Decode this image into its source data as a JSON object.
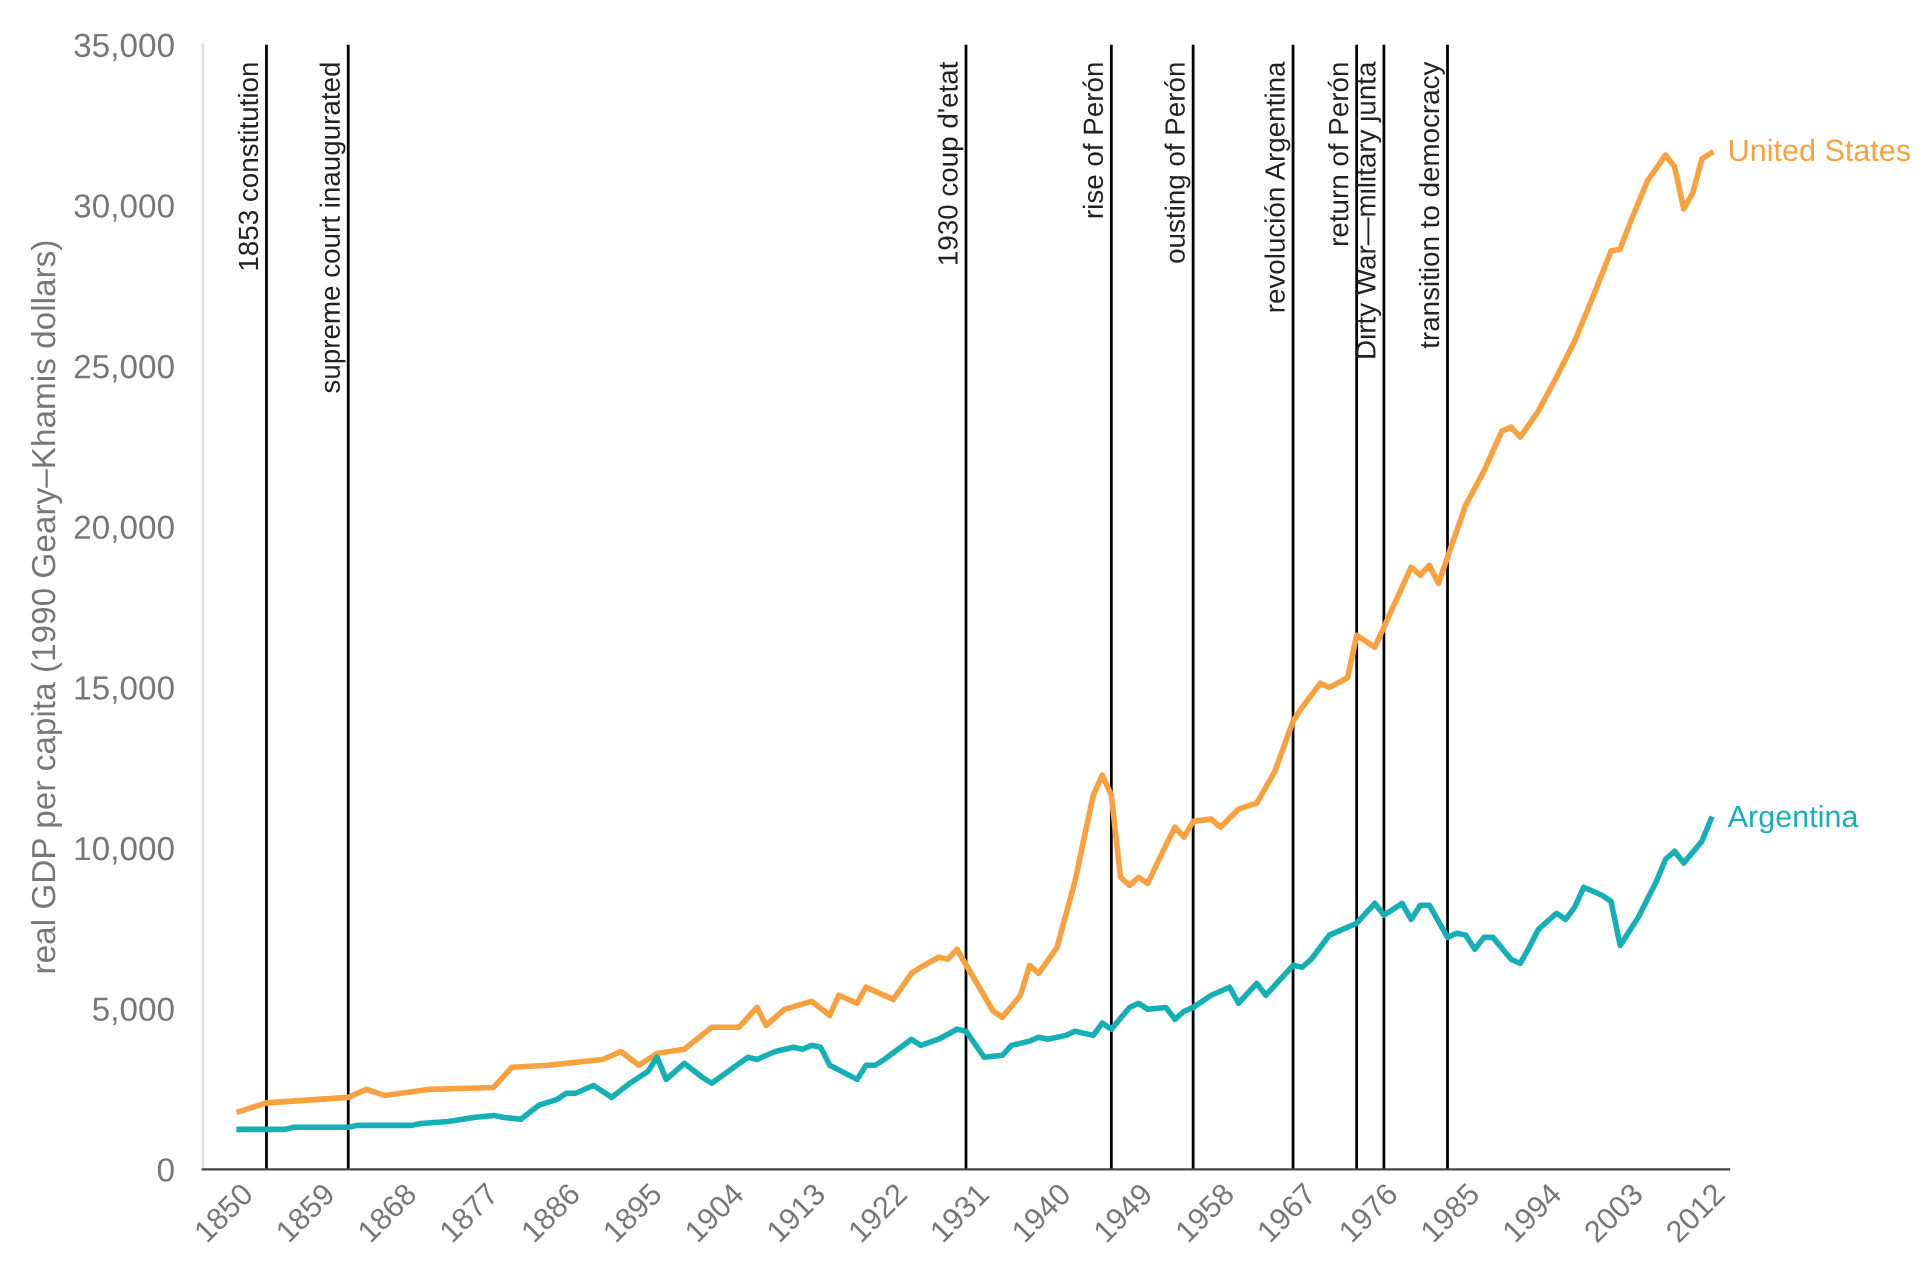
{
  "chart_data": {
    "type": "line",
    "ylabel": "real GDP per capita (1990 Geary–Khamis dollars)",
    "xlim": [
      1846,
      2014
    ],
    "xticks": [
      1850,
      1859,
      1868,
      1877,
      1886,
      1895,
      1904,
      1913,
      1922,
      1931,
      1940,
      1949,
      1958,
      1967,
      1976,
      1985,
      1994,
      2003,
      2012
    ],
    "ylim": [
      0,
      35000
    ],
    "yticks": [
      {
        "value": 0,
        "label": "0"
      },
      {
        "value": 5000,
        "label": "5,000"
      },
      {
        "value": 10000,
        "label": "10,000"
      },
      {
        "value": 15000,
        "label": "15,000"
      },
      {
        "value": 20000,
        "label": "20,000"
      },
      {
        "value": 25000,
        "label": "25,000"
      },
      {
        "value": 30000,
        "label": "30,000"
      },
      {
        "value": 35000,
        "label": "35,000"
      }
    ],
    "grid": false,
    "legend": false,
    "marker": "none",
    "line_style": "solid",
    "series": [
      {
        "name": "United States",
        "color": "#f9a03f",
        "x": [
          1850,
          1853,
          1862,
          1864,
          1866,
          1871,
          1878,
          1880,
          1884,
          1890,
          1892,
          1894,
          1896,
          1899,
          1902,
          1905,
          1907,
          1908,
          1910,
          1913,
          1915,
          1916,
          1918,
          1919,
          1922,
          1924,
          1925,
          1927,
          1928,
          1929,
          1933,
          1934,
          1936,
          1937,
          1938,
          1940,
          1942,
          1944,
          1945,
          1946,
          1947,
          1948,
          1949,
          1950,
          1952,
          1953,
          1954,
          1955,
          1957,
          1958,
          1960,
          1962,
          1964,
          1966,
          1967,
          1969,
          1970,
          1972,
          1973,
          1975,
          1977,
          1979,
          1980,
          1981,
          1982,
          1983,
          1985,
          1987,
          1989,
          1990,
          1991,
          1993,
          1995,
          1997,
          1999,
          2001,
          2002,
          2003,
          2005,
          2007,
          2008,
          2009,
          2010,
          2011,
          2012
        ],
        "values": [
          1800,
          2070,
          2240,
          2490,
          2300,
          2490,
          2550,
          3175,
          3240,
          3420,
          3670,
          3240,
          3610,
          3740,
          4420,
          4420,
          5040,
          4480,
          4980,
          5230,
          4790,
          5420,
          5170,
          5670,
          5290,
          6100,
          6290,
          6600,
          6540,
          6850,
          4920,
          4730,
          5420,
          6350,
          6100,
          6900,
          8970,
          11640,
          12270,
          11640,
          9090,
          8840,
          9090,
          8900,
          10090,
          10650,
          10340,
          10830,
          10900,
          10650,
          11210,
          11400,
          12390,
          13950,
          14380,
          15130,
          15000,
          15300,
          16620,
          16250,
          17500,
          18740,
          18490,
          18800,
          18240,
          19050,
          20670,
          21730,
          22980,
          23100,
          22790,
          23600,
          24660,
          25780,
          27150,
          28580,
          28640,
          29390,
          30760,
          31570,
          31200,
          29890,
          30390,
          31450,
          31630
        ]
      },
      {
        "name": "Argentina",
        "color": "#14b0b5",
        "x": [
          1850,
          1855,
          1856,
          1862,
          1863,
          1869,
          1870,
          1873,
          1876,
          1878,
          1879,
          1881,
          1883,
          1885,
          1886,
          1887,
          1889,
          1890,
          1891,
          1893,
          1895,
          1896,
          1897,
          1899,
          1901,
          1902,
          1906,
          1907,
          1909,
          1911,
          1912,
          1913,
          1914,
          1915,
          1918,
          1919,
          1920,
          1921,
          1924,
          1925,
          1927,
          1929,
          1930,
          1932,
          1934,
          1935,
          1937,
          1938,
          1939,
          1941,
          1942,
          1944,
          1945,
          1946,
          1948,
          1949,
          1950,
          1952,
          1953,
          1954,
          1955,
          1957,
          1959,
          1960,
          1962,
          1963,
          1966,
          1967,
          1968,
          1970,
          1973,
          1975,
          1976,
          1978,
          1979,
          1980,
          1981,
          1983,
          1984,
          1985,
          1986,
          1987,
          1988,
          1990,
          1991,
          1992,
          1993,
          1995,
          1996,
          1997,
          1998,
          2000,
          2001,
          2002,
          2004,
          2006,
          2007,
          2008,
          2009,
          2011,
          2012
        ],
        "values": [
          1245,
          1245,
          1310,
          1310,
          1370,
          1370,
          1430,
          1490,
          1620,
          1680,
          1620,
          1560,
          2000,
          2180,
          2370,
          2370,
          2610,
          2430,
          2240,
          2680,
          3050,
          3490,
          2800,
          3300,
          2860,
          2680,
          3490,
          3420,
          3670,
          3800,
          3740,
          3860,
          3800,
          3240,
          2800,
          3240,
          3240,
          3420,
          4050,
          3860,
          4050,
          4360,
          4300,
          3490,
          3550,
          3860,
          3990,
          4110,
          4050,
          4170,
          4300,
          4170,
          4550,
          4360,
          5040,
          5170,
          4980,
          5040,
          4670,
          4920,
          5040,
          5420,
          5670,
          5170,
          5790,
          5420,
          6350,
          6290,
          6540,
          7290,
          7660,
          8280,
          7910,
          8280,
          7780,
          8220,
          8220,
          7220,
          7350,
          7290,
          6850,
          7220,
          7220,
          6540,
          6410,
          6910,
          7470,
          7970,
          7780,
          8160,
          8780,
          8530,
          8340,
          6970,
          7850,
          8970,
          9650,
          9900,
          9530,
          10210,
          10900
        ]
      }
    ],
    "ref_lines": [
      {
        "axis": "x",
        "value": 1853,
        "label": "1853 constitution",
        "color": "#000000"
      },
      {
        "axis": "x",
        "value": 1862,
        "label": "supreme court inaugurated",
        "color": "#000000"
      },
      {
        "axis": "x",
        "value": 1930,
        "label": "1930 coup d'etat",
        "color": "#000000"
      },
      {
        "axis": "x",
        "value": 1946,
        "label": "rise of Perón",
        "color": "#000000"
      },
      {
        "axis": "x",
        "value": 1955,
        "label": "ousting of Perón",
        "color": "#000000"
      },
      {
        "axis": "x",
        "value": 1966,
        "label": "revolución Argentina",
        "color": "#000000"
      },
      {
        "axis": "x",
        "value": 1973,
        "label": "return of Perón",
        "color": "#000000"
      },
      {
        "axis": "x",
        "value": 1976,
        "label": "Dirty War—military junta",
        "color": "#000000"
      },
      {
        "axis": "x",
        "value": 1983,
        "label": "transition to democracy",
        "color": "#000000"
      }
    ]
  }
}
